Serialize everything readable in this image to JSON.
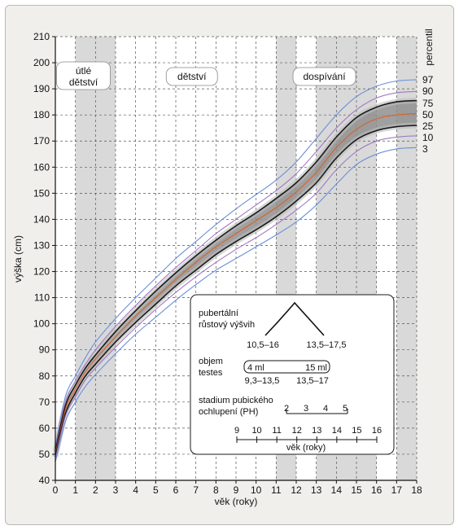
{
  "chart_data": {
    "type": "line",
    "xlabel": "věk (roky)",
    "ylabel": "výška (cm)",
    "xlim": [
      0,
      18
    ],
    "ylim": [
      40,
      210
    ],
    "x_ticks": [
      0,
      1,
      2,
      3,
      4,
      5,
      6,
      7,
      8,
      9,
      10,
      11,
      12,
      13,
      14,
      15,
      16,
      17,
      18
    ],
    "y_ticks": [
      40,
      50,
      60,
      70,
      80,
      90,
      100,
      110,
      120,
      130,
      140,
      150,
      160,
      170,
      180,
      190,
      200,
      210
    ],
    "grid": true,
    "shaded_age_ranges": [
      [
        1,
        3
      ],
      [
        11,
        12
      ],
      [
        13,
        16
      ],
      [
        17,
        18
      ]
    ],
    "periods": [
      {
        "label": "útlé dětství",
        "line1": "útlé",
        "line2": "dětství",
        "x": 1.4
      },
      {
        "label": "dětství",
        "x": 6.8
      },
      {
        "label": "dospívání",
        "x": 13.4
      }
    ],
    "percentile_title": "percentil",
    "x": [
      0,
      0.5,
      1,
      1.5,
      2,
      3,
      4,
      5,
      6,
      7,
      8,
      9,
      10,
      11,
      12,
      13,
      14,
      15,
      16,
      17,
      18
    ],
    "series": [
      {
        "name": "97",
        "color": "#6a8fd8",
        "values": [
          53,
          72,
          80,
          87,
          93,
          102,
          110,
          117.5,
          125,
          131.5,
          138,
          144,
          149.5,
          155,
          162,
          171,
          180,
          187,
          191,
          193,
          193.5
        ]
      },
      {
        "name": "90",
        "color": "#a07bc0",
        "values": [
          52,
          70,
          78,
          84.5,
          90,
          99,
          107,
          114.5,
          121.5,
          128,
          134.5,
          140,
          145.5,
          151,
          157.5,
          166,
          175,
          182,
          186.5,
          188.5,
          189
        ]
      },
      {
        "name": "75",
        "color": "#1a1a1a",
        "values": [
          51,
          68.5,
          76.5,
          83,
          88,
          97,
          105,
          112.5,
          119.5,
          126,
          132,
          137.5,
          142.5,
          148,
          154,
          162,
          171.5,
          179,
          183,
          185,
          185.5
        ]
      },
      {
        "name": "50",
        "color": "#d8622a",
        "values": [
          50,
          67,
          75,
          81.5,
          86.5,
          95,
          103,
          110,
          117,
          123.5,
          129.5,
          134.5,
          139.5,
          144.5,
          150.5,
          158,
          167.5,
          174.5,
          178.5,
          180,
          180.5
        ]
      },
      {
        "name": "25",
        "color": "#1a1a1a",
        "values": [
          49,
          65.5,
          73.5,
          80,
          84.5,
          93,
          100.5,
          107.5,
          114.5,
          120.5,
          126.5,
          131.5,
          136,
          141,
          147,
          154,
          163.5,
          170.5,
          174,
          175.5,
          176
        ]
      },
      {
        "name": "10",
        "color": "#a07bc0",
        "values": [
          48,
          64.5,
          72,
          78.5,
          83,
          91,
          98.5,
          105.5,
          112,
          118,
          123.5,
          128.5,
          133,
          138,
          143.5,
          150,
          159,
          166,
          170,
          171.5,
          172
        ]
      },
      {
        "name": "3",
        "color": "#6a8fd8",
        "values": [
          47,
          62.5,
          70,
          76,
          80.5,
          88.5,
          96,
          102.5,
          109,
          115,
          120.5,
          125,
          129.5,
          134,
          139,
          145.5,
          153.5,
          161,
          165,
          167,
          167.5
        ]
      }
    ]
  },
  "inset": {
    "pubertal_label_1": "pubertální",
    "pubertal_label_2": "růstový výšvih",
    "pubertal_range_girls": "10,5–16",
    "pubertal_range_boys": "13,5–17,5",
    "testes_label_1": "objem",
    "testes_label_2": "testes",
    "testes_start": "4 ml",
    "testes_end": "15 ml",
    "testes_range_1": "9,3–13,5",
    "testes_range_2": "13,5–17",
    "pubic_label_1": "stadium pubického",
    "pubic_label_2": "ochlupení (PH)",
    "pubic_stages": [
      "2",
      "3",
      "4",
      "5"
    ],
    "age_ticks": [
      "9",
      "10",
      "11",
      "12",
      "13",
      "14",
      "15",
      "16"
    ],
    "age_label": "věk (roky)"
  }
}
